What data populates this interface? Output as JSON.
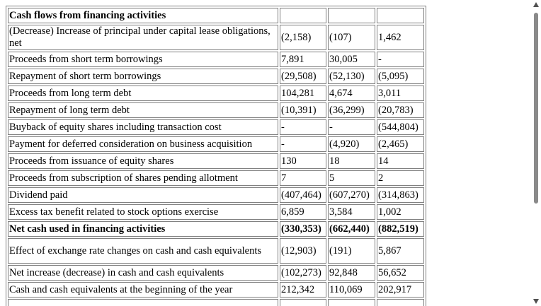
{
  "rows": [
    {
      "label": "Cash flows from financing activities",
      "v1": "",
      "v2": "",
      "v3": "",
      "bold": true,
      "h": 24
    },
    {
      "label": "(Decrease) Increase of principal under capital lease obligations, net",
      "v1": "(2,158)",
      "v2": "(107)",
      "v3": "1,462",
      "h": 36,
      "wrap": true
    },
    {
      "label": "Proceeds from short term borrowings",
      "v1": "7,891",
      "v2": "30,005",
      "v3": "-",
      "h": 24
    },
    {
      "label": "Repayment of short term borrowings",
      "v1": "(29,508)",
      "v2": "(52,130)",
      "v3": "(5,095)",
      "h": 24
    },
    {
      "label": "Proceeds from long term debt",
      "v1": "104,281",
      "v2": "4,674",
      "v3": "3,011",
      "h": 24
    },
    {
      "label": "Repayment of long term debt",
      "v1": "(10,391)",
      "v2": "(36,299)",
      "v3": "(20,783)",
      "h": 24
    },
    {
      "label": "Buyback of equity shares including transaction cost",
      "v1": "-",
      "v2": "-",
      "v3": "(544,804)",
      "h": 24
    },
    {
      "label": "Payment for deferred consideration on business acquisition",
      "v1": "-",
      "v2": "(4,920)",
      "v3": "(2,465)",
      "h": 24
    },
    {
      "label": "Proceeds from issuance of equity shares",
      "v1": "130",
      "v2": "18",
      "v3": "14",
      "h": 24
    },
    {
      "label": "Proceeds from subscription of shares pending allotment",
      "v1": "7",
      "v2": "5",
      "v3": "2",
      "h": 24
    },
    {
      "label": "Dividend paid",
      "v1": "(407,464)",
      "v2": "(607,270)",
      "v3": "(314,863)",
      "h": 24
    },
    {
      "label": "Excess tax benefit related to stock options exercise",
      "v1": "6,859",
      "v2": "3,584",
      "v3": "1,002",
      "h": 24
    },
    {
      "label": "Net cash used in financing activities",
      "v1": "(330,353)",
      "v2": "(662,440)",
      "v3": "(882,519)",
      "bold": true,
      "h": 24
    },
    {
      "label": "Effect of exchange rate changes on cash and cash equivalents",
      "v1": "(12,903)",
      "v2": "(191)",
      "v3": "5,867",
      "h": 36,
      "wrap": true
    },
    {
      "label": "Net increase (decrease) in cash and cash equivalents",
      "v1": "(102,273)",
      "v2": "92,848",
      "v3": "56,652",
      "h": 24
    },
    {
      "label": "Cash and cash equivalents at the beginning of the year",
      "v1": "212,342",
      "v2": "110,069",
      "v3": "202,917",
      "h": 24
    },
    {
      "label": "",
      "v1": "",
      "v2": "",
      "v3": "",
      "h": 24
    }
  ],
  "scrollbar": {
    "up_icon": "chevron-up-icon",
    "down_icon": "chevron-down-icon"
  }
}
